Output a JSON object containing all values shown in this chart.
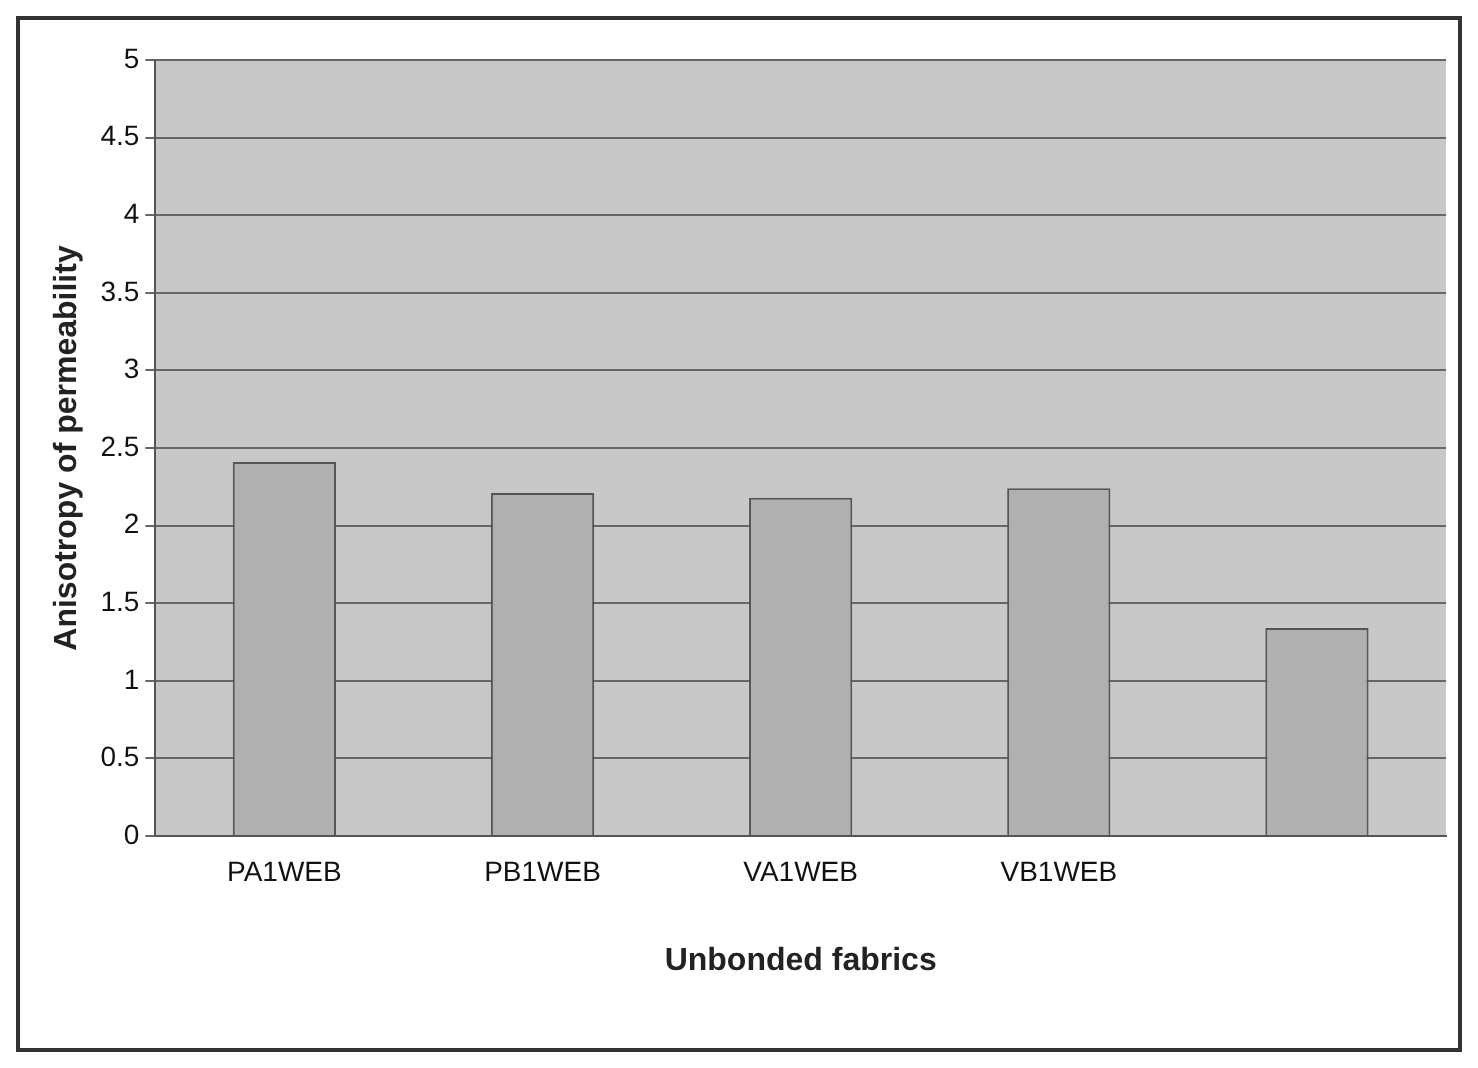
{
  "chart_data": {
    "type": "bar",
    "xlabel": "Unbonded fabrics",
    "ylabel": "Anisotropy of permeability",
    "categories": [
      "PA1WEB",
      "PB1WEB",
      "VA1WEB",
      "VB1WEB",
      null
    ],
    "values": [
      2.41,
      2.21,
      2.18,
      2.24,
      1.34
    ],
    "color": "#b0b0b0",
    "ylim": [
      0,
      5
    ],
    "yticks": [
      0,
      0.5,
      1,
      1.5,
      2,
      2.5,
      3,
      3.5,
      4,
      4.5,
      5
    ],
    "grid": "y",
    "legend": false
  }
}
